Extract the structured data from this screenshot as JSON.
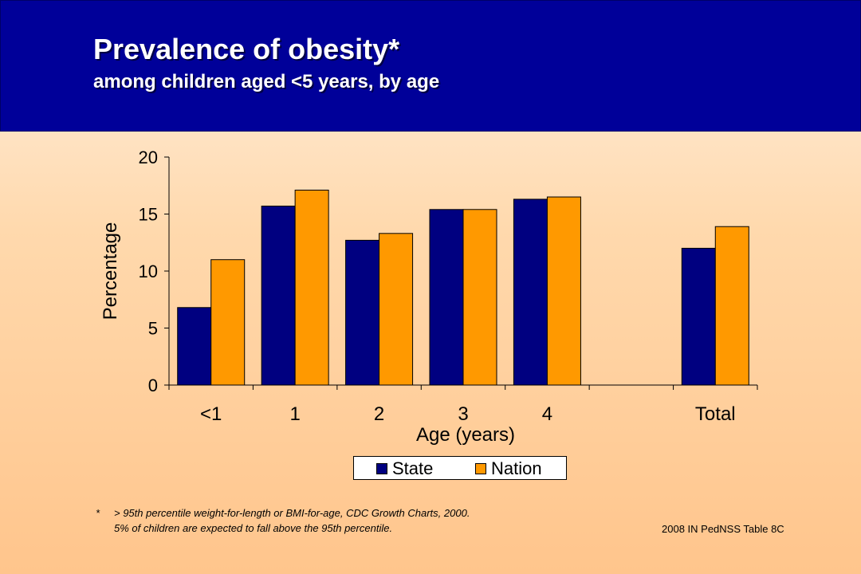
{
  "header": {
    "title": "Prevalence of obesity*",
    "subtitle": "among children aged <5 years, by age"
  },
  "chart_data": {
    "type": "bar",
    "categories": [
      "<1",
      "1",
      "2",
      "3",
      "4",
      "",
      "Total"
    ],
    "series": [
      {
        "name": "State",
        "values": [
          6.8,
          15.7,
          12.7,
          15.4,
          16.3,
          null,
          12.0
        ],
        "color": "#000080"
      },
      {
        "name": "Nation",
        "values": [
          11.0,
          17.1,
          13.3,
          15.4,
          16.5,
          null,
          13.9
        ],
        "color": "#ff9900"
      }
    ],
    "xlabel": "Age (years)",
    "ylabel": "Percentage",
    "ylim": [
      0,
      20
    ],
    "yticks": [
      0,
      5,
      10,
      15,
      20
    ],
    "grid": false,
    "legend": "bottom"
  },
  "footnote": {
    "marker": "*",
    "line1": "> 95th percentile weight-for-length or BMI-for-age, CDC Growth Charts, 2000.",
    "line2": "5% of children are expected to fall above the 95th percentile."
  },
  "source": "2008 IN PedNSS Table 8C"
}
